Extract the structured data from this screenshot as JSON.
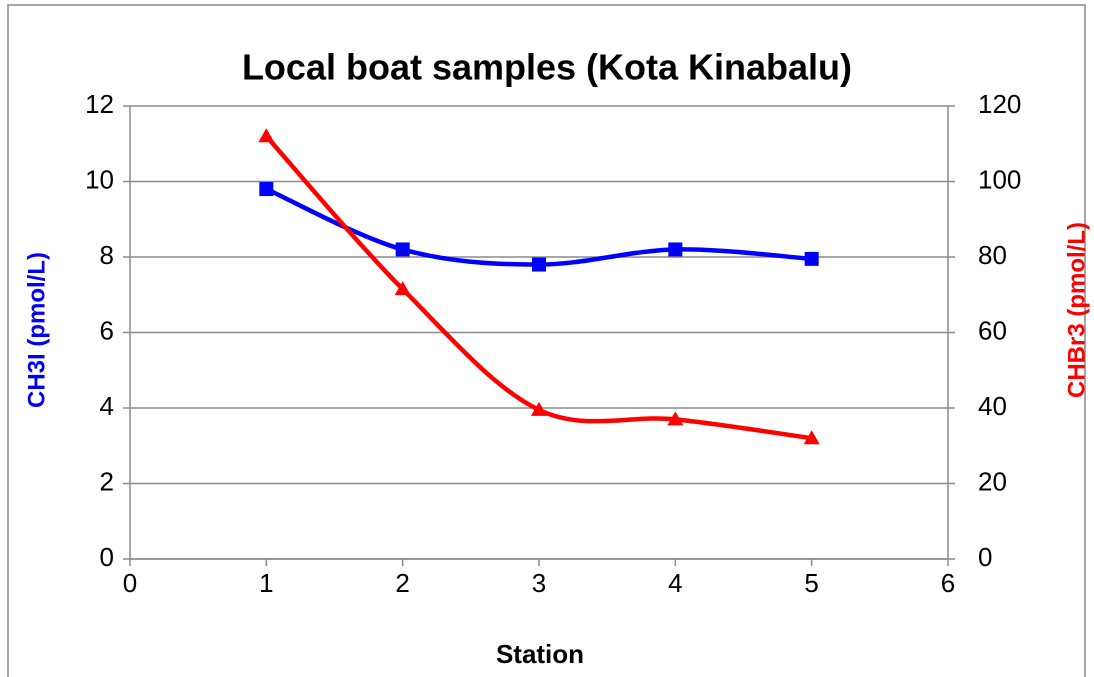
{
  "chart_data": {
    "type": "line",
    "title": "Local boat samples (Kota Kinabalu)",
    "x_label": "Station",
    "y_label": "CH3I (pmol/L)",
    "y2_label": "CHBr3 (pmol/L)",
    "x": [
      1,
      2,
      3,
      4,
      5
    ],
    "xlim": [
      0,
      6
    ],
    "xticks": [
      0,
      1,
      2,
      3,
      4,
      5,
      6
    ],
    "ylim": [
      0,
      12
    ],
    "yticks": [
      0,
      2,
      4,
      6,
      8,
      10,
      12
    ],
    "y2lim": [
      0,
      120
    ],
    "y2ticks": [
      0,
      20,
      40,
      60,
      80,
      100,
      120
    ],
    "grid": true,
    "series": [
      {
        "color": "#0000ff",
        "marker": "square",
        "values": [
          9.8,
          8.2,
          7.8,
          8.2,
          7.95
        ]
      },
      {
        "color": "#ff0000",
        "marker": "triangle",
        "axis": "y2",
        "values": [
          112,
          71.5,
          39.5,
          37,
          32
        ]
      }
    ]
  }
}
